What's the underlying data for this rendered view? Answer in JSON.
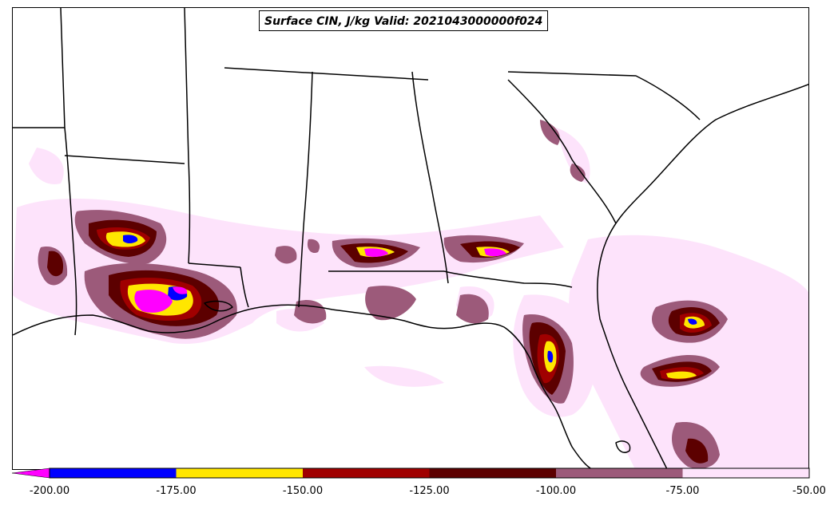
{
  "title": "Surface CIN, J/kg Valid: 2021043000000f024",
  "colorbar": {
    "ticks": [
      "-200.00",
      "-175.00",
      "-150.00",
      "-125.00",
      "-100.00",
      "-75.00",
      "-50.00"
    ],
    "extend": "min",
    "levels": [
      {
        "from": -200,
        "to": -175,
        "color": "#0000ff"
      },
      {
        "from": -175,
        "to": -150,
        "color": "#ffe600"
      },
      {
        "from": -150,
        "to": -125,
        "color": "#a00000"
      },
      {
        "from": -125,
        "to": -100,
        "color": "#5c0000"
      },
      {
        "from": -100,
        "to": -75,
        "color": "#9c5a7a"
      },
      {
        "from": -75,
        "to": -50,
        "color": "#fde3fb"
      }
    ],
    "under_color": "#ff00ff"
  }
}
